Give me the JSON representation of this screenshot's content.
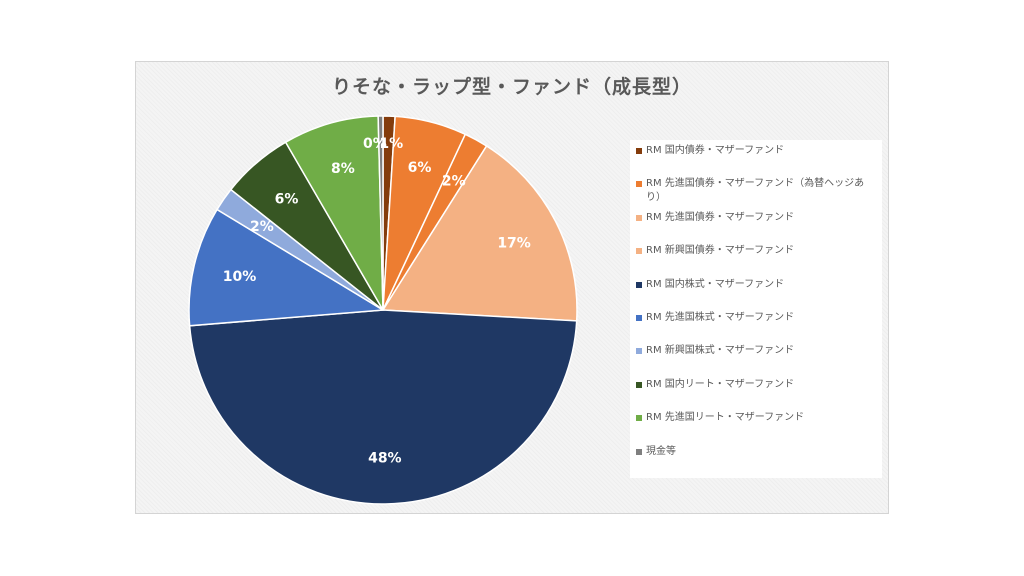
{
  "chart_data": {
    "type": "pie",
    "title": "りそな・ラップ型・ファンド（成長型）",
    "legend_position": "right",
    "categories": [
      "RM 国内債券・マザーファンド",
      "RM 先進国債券・マザーファンド（為替ヘッジあり）",
      "RM 先進国債券・マザーファンド",
      "RM 新興国債券・マザーファンド",
      "RM 国内株式・マザーファンド",
      "RM 先進国株式・マザーファンド",
      "RM 新興国株式・マザーファンド",
      "RM 国内リート・マザーファンド",
      "RM 先進国リート・マザーファンド",
      "現金等"
    ],
    "values": [
      1,
      6,
      2,
      17,
      48,
      10,
      2,
      6,
      8,
      0
    ],
    "data_labels": [
      "1%",
      "6%",
      "2%",
      "17%",
      "48%",
      "10%",
      "2%",
      "6%",
      "8%",
      "0%"
    ],
    "colors": [
      "#843C0C",
      "#ED7D31",
      "#F4B183",
      "#F4B183",
      "#1F3864",
      "#4472C4",
      "#8FAADC",
      "#375623",
      "#70AD47",
      "#7F7F7F"
    ]
  }
}
